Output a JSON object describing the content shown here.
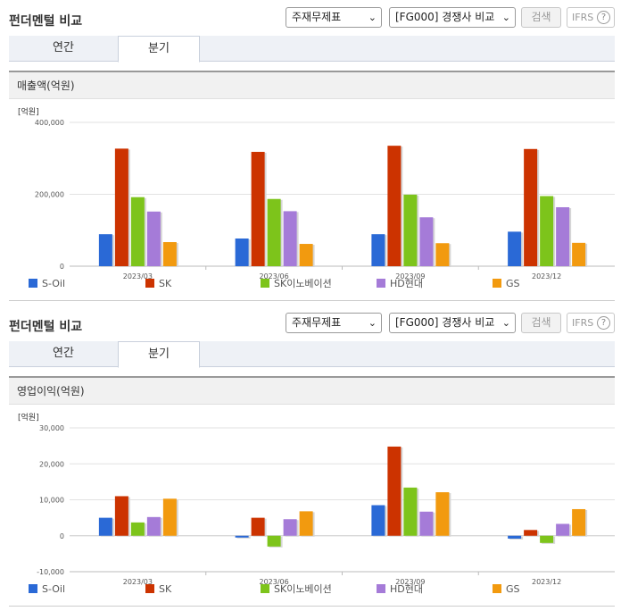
{
  "panels": [
    {
      "section_title": "펀더멘털 비교",
      "select_statement": "주재무제표",
      "select_peer": "[FG000] 경쟁사 비교",
      "search_label": "검색",
      "ifrs_label": "IFRS",
      "help_label": "?",
      "tabs": [
        "연간",
        "분기"
      ],
      "active_tab": "분기",
      "chart_title": "매출액(억원)"
    },
    {
      "section_title": "펀더멘털 비교",
      "select_statement": "주재무제표",
      "select_peer": "[FG000] 경쟁사 비교",
      "search_label": "검색",
      "ifrs_label": "IFRS",
      "help_label": "?",
      "tabs": [
        "연간",
        "분기"
      ],
      "active_tab": "분기",
      "chart_title": "영업이익(억원)"
    }
  ],
  "colors": {
    "S-Oil": "#2a69d6",
    "SK": "#cc3300",
    "SK이노베이션": "#7dc41b",
    "HD현대": "#a57bd8",
    "GS": "#f29a0f"
  },
  "chart_data": [
    {
      "type": "bar",
      "title": "매출액(억원)",
      "unit_label": "[억원]",
      "categories": [
        "2023/03",
        "2023/06",
        "2023/09",
        "2023/12"
      ],
      "ylim": [
        0,
        400000
      ],
      "yticks": [
        0,
        200000,
        400000
      ],
      "ytick_labels": [
        "0",
        "200,000",
        "400,000"
      ],
      "grid": true,
      "legend_position": "bottom",
      "series": [
        {
          "name": "S-Oil",
          "values": [
            89000,
            77000,
            89000,
            96000
          ]
        },
        {
          "name": "SK",
          "values": [
            327000,
            318000,
            335000,
            326000
          ]
        },
        {
          "name": "SK이노베이션",
          "values": [
            192000,
            187000,
            199000,
            195000
          ]
        },
        {
          "name": "HD현대",
          "values": [
            152000,
            153000,
            136000,
            164000
          ]
        },
        {
          "name": "GS",
          "values": [
            67000,
            62000,
            64000,
            65000
          ]
        }
      ]
    },
    {
      "type": "bar",
      "title": "영업이익(억원)",
      "unit_label": "[억원]",
      "categories": [
        "2023/03",
        "2023/06",
        "2023/09",
        "2023/12"
      ],
      "ylim": [
        -10000,
        30000
      ],
      "yticks": [
        -10000,
        0,
        10000,
        20000,
        30000
      ],
      "ytick_labels": [
        "-10,000",
        "0",
        "10,000",
        "20,000",
        "30,000"
      ],
      "grid": true,
      "legend_position": "bottom",
      "series": [
        {
          "name": "S-Oil",
          "values": [
            5000,
            -500,
            8500,
            -800
          ]
        },
        {
          "name": "SK",
          "values": [
            11000,
            5000,
            24800,
            1600
          ]
        },
        {
          "name": "SK이노베이션",
          "values": [
            3700,
            -3000,
            13400,
            -2000
          ]
        },
        {
          "name": "HD현대",
          "values": [
            5200,
            4600,
            6700,
            3300
          ]
        },
        {
          "name": "GS",
          "values": [
            10300,
            6800,
            12100,
            7400
          ]
        }
      ]
    }
  ]
}
